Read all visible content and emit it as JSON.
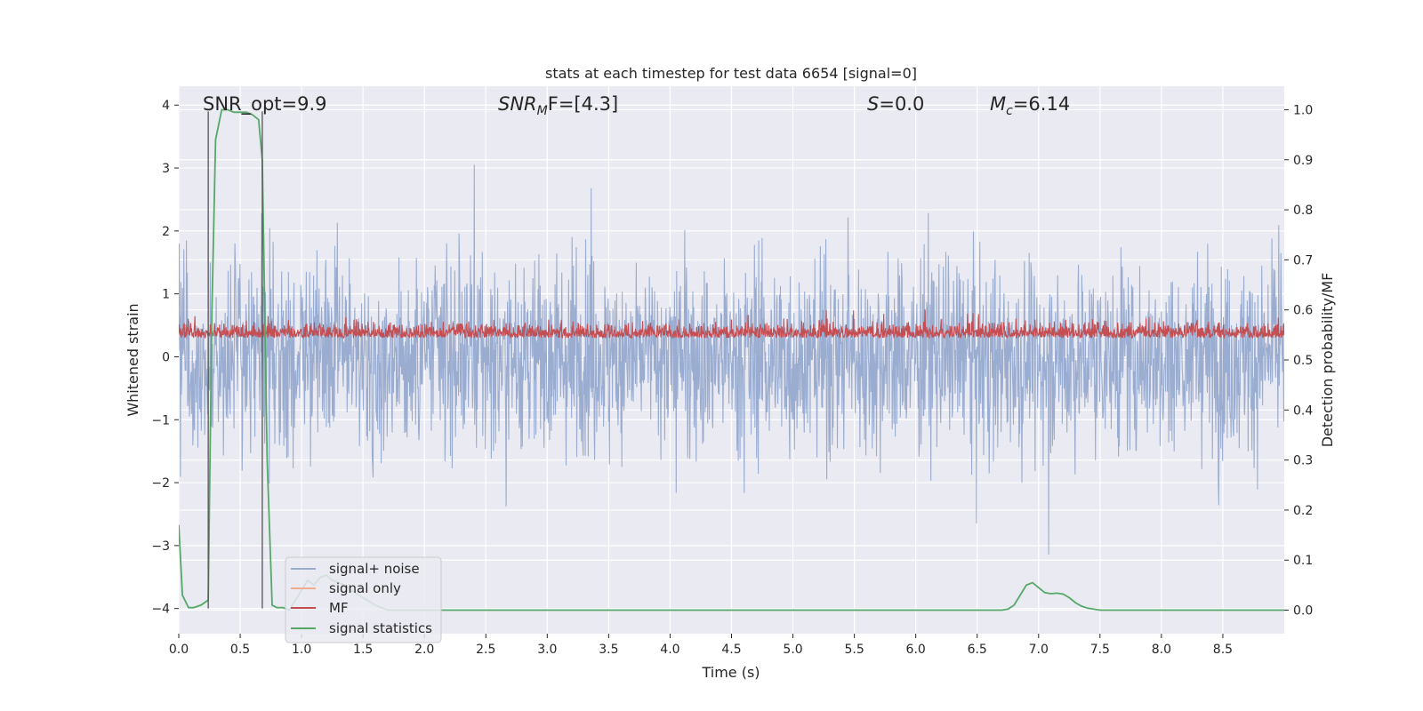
{
  "chart_data": {
    "type": "line",
    "title": "stats at each timestep for test data 6654 [signal=0]",
    "xlabel": "Time (s)",
    "ylabel": "Whitened strain",
    "ylabel_right": "Detection probability/MF",
    "xlim": [
      0.0,
      9.0
    ],
    "ylim": [
      -4.4,
      4.3
    ],
    "ylim_right": [
      -0.047,
      1.047
    ],
    "x_ticks": [
      0.0,
      0.5,
      1.0,
      1.5,
      2.0,
      2.5,
      3.0,
      3.5,
      4.0,
      4.5,
      5.0,
      5.5,
      6.0,
      6.5,
      7.0,
      7.5,
      8.0,
      8.5
    ],
    "x_tick_labels": [
      "0.0",
      "0.5",
      "1.0",
      "1.5",
      "2.0",
      "2.5",
      "3.0",
      "3.5",
      "4.0",
      "4.5",
      "5.0",
      "5.5",
      "6.0",
      "6.5",
      "7.0",
      "7.5",
      "8.0",
      "8.5"
    ],
    "y_ticks": [
      4,
      3,
      2,
      1,
      0,
      -1,
      -2,
      -3,
      -4
    ],
    "y_tick_labels": [
      "4",
      "3",
      "2",
      "1",
      "0",
      "−1",
      "−2",
      "−3",
      "−4"
    ],
    "y_right_ticks": [
      1.0,
      0.9,
      0.8,
      0.7,
      0.6,
      0.5,
      0.4,
      0.3,
      0.2,
      0.1,
      0.0
    ],
    "y_right_tick_labels": [
      "1.0",
      "0.9",
      "0.8",
      "0.7",
      "0.6",
      "0.5",
      "0.4",
      "0.3",
      "0.2",
      "0.1",
      "0.0"
    ],
    "annotations": [
      {
        "id": "snr-opt",
        "text": "SNR_opt=9.9"
      },
      {
        "id": "snr-mf",
        "text": "SNR",
        "sub": "M",
        "rest": "F=[4.3]"
      },
      {
        "id": "s-value",
        "text": "S",
        "rest": "=0.0"
      },
      {
        "id": "mc-value",
        "text": "M",
        "sub": "c",
        "rest": "=6.14"
      }
    ],
    "vertical_markers_s": [
      0.24,
      0.68
    ],
    "series": [
      {
        "name": "signal+ noise",
        "color": "#9aadd1",
        "axis": "left",
        "envelope": [
          -2.0,
          2.0
        ],
        "peaks": [
          3.55,
          -3.9
        ]
      },
      {
        "name": "signal only",
        "color": "#f0ad8e",
        "axis": "left",
        "values": []
      },
      {
        "name": "MF",
        "color": "#c44e52",
        "axis": "left",
        "range": [
          0.0,
          1.0
        ]
      },
      {
        "name": "signal statistics",
        "color": "#55a868",
        "axis": "right",
        "x": [
          0.0,
          0.03,
          0.08,
          0.12,
          0.18,
          0.24,
          0.27,
          0.3,
          0.35,
          0.4,
          0.45,
          0.5,
          0.55,
          0.6,
          0.65,
          0.68,
          0.72,
          0.76,
          0.8,
          0.85,
          0.9,
          0.95,
          1.0,
          1.05,
          1.1,
          1.15,
          1.2,
          1.25,
          1.3,
          1.35,
          1.4,
          1.5,
          1.6,
          1.7,
          1.8,
          2.0,
          3.0,
          4.0,
          5.0,
          6.0,
          6.7,
          6.75,
          6.8,
          6.85,
          6.9,
          6.95,
          7.0,
          7.05,
          7.1,
          7.15,
          7.2,
          7.25,
          7.3,
          7.35,
          7.4,
          7.45,
          7.5,
          7.55,
          7.6,
          8.0,
          8.5,
          9.0
        ],
        "y": [
          0.17,
          0.03,
          0.005,
          0.005,
          0.01,
          0.02,
          0.6,
          0.94,
          1.0,
          1.0,
          0.995,
          0.995,
          0.995,
          0.99,
          0.98,
          0.9,
          0.3,
          0.01,
          0.005,
          0.005,
          0.0,
          0.02,
          0.04,
          0.06,
          0.05,
          0.065,
          0.07,
          0.06,
          0.055,
          0.05,
          0.04,
          0.025,
          0.01,
          0.0,
          0.0,
          0.0,
          0.0,
          0.0,
          0.0,
          0.0,
          0.0,
          0.002,
          0.01,
          0.03,
          0.05,
          0.055,
          0.045,
          0.035,
          0.033,
          0.034,
          0.032,
          0.025,
          0.015,
          0.008,
          0.004,
          0.002,
          0.0,
          0.0,
          0.0,
          0.0,
          0.0,
          0.0
        ]
      }
    ],
    "legend": {
      "position": "lower-left",
      "entries": [
        "signal+ noise",
        "signal only",
        "MF",
        "signal statistics"
      ]
    },
    "grid": true,
    "background": "#eaeaf2"
  }
}
